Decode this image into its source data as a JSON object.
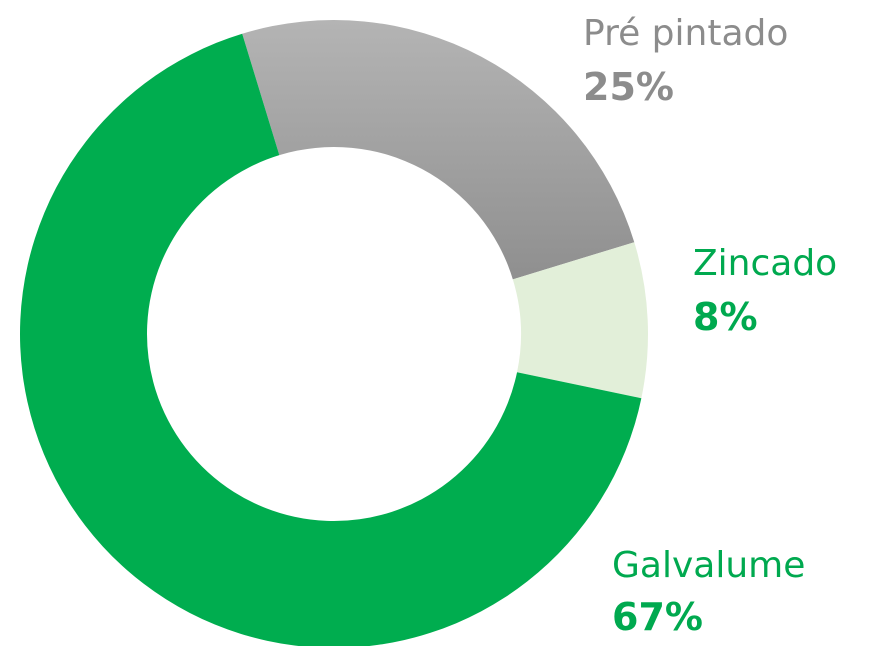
{
  "chart_data": {
    "type": "donut",
    "categories": [
      "Pré pintado",
      "Zincado",
      "Galvalume"
    ],
    "values": [
      25,
      8,
      67
    ],
    "value_labels": [
      "25%",
      "8%",
      "67%"
    ],
    "colors": [
      "#a3a3a3",
      "#e2efd9",
      "#00ad4f"
    ],
    "label_colors": [
      "#8c8c8c",
      "#00a94f",
      "#00a94f"
    ]
  }
}
